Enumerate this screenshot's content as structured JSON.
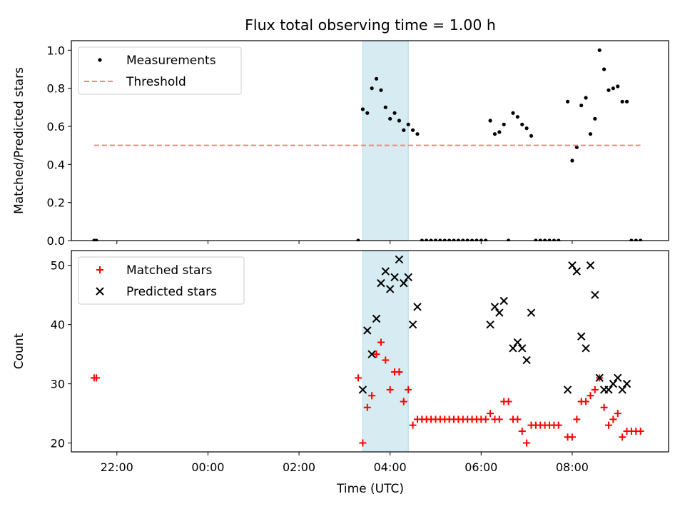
{
  "chart_data": {
    "type": "scatter",
    "title": "Flux total observing time = 1.00 h",
    "xlabel": "Time (UTC)",
    "x_ticks": [
      "22:00",
      "00:00",
      "02:00",
      "04:00",
      "06:00",
      "08:00"
    ],
    "shaded_span": {
      "from": "03:24",
      "to": "04:24",
      "color": "#add8e6"
    },
    "panels": [
      {
        "ylabel": "Matched/Predicted stars",
        "ylim": [
          0,
          1.05
        ],
        "y_ticks": [
          "0.0",
          "0.2",
          "0.4",
          "0.6",
          "0.8",
          "1.0"
        ],
        "legend_position": "upper-left",
        "series": [
          {
            "name": "Measurements",
            "marker": "dot",
            "color": "#000000",
            "points": [
              [
                "21:30",
                0
              ],
              [
                "21:33",
                0
              ],
              [
                "03:18",
                0
              ],
              [
                "03:24",
                0.69
              ],
              [
                "03:30",
                0.67
              ],
              [
                "03:36",
                0.8
              ],
              [
                "03:42",
                0.85
              ],
              [
                "03:48",
                0.79
              ],
              [
                "03:54",
                0.7
              ],
              [
                "04:00",
                0.64
              ],
              [
                "04:06",
                0.67
              ],
              [
                "04:12",
                0.63
              ],
              [
                "04:18",
                0.58
              ],
              [
                "04:24",
                0.61
              ],
              [
                "04:30",
                0.58
              ],
              [
                "04:36",
                0.56
              ],
              [
                "04:42",
                0
              ],
              [
                "04:48",
                0
              ],
              [
                "04:54",
                0
              ],
              [
                "05:00",
                0
              ],
              [
                "05:06",
                0
              ],
              [
                "05:12",
                0
              ],
              [
                "05:18",
                0
              ],
              [
                "05:24",
                0
              ],
              [
                "05:30",
                0
              ],
              [
                "05:36",
                0
              ],
              [
                "05:42",
                0
              ],
              [
                "05:48",
                0
              ],
              [
                "05:54",
                0
              ],
              [
                "06:00",
                0
              ],
              [
                "06:06",
                0
              ],
              [
                "06:12",
                0.63
              ],
              [
                "06:18",
                0.56
              ],
              [
                "06:24",
                0.57
              ],
              [
                "06:30",
                0.61
              ],
              [
                "06:36",
                0
              ],
              [
                "06:42",
                0.67
              ],
              [
                "06:48",
                0.65
              ],
              [
                "06:54",
                0.61
              ],
              [
                "07:00",
                0.59
              ],
              [
                "07:06",
                0.55
              ],
              [
                "07:12",
                0
              ],
              [
                "07:18",
                0
              ],
              [
                "07:24",
                0
              ],
              [
                "07:30",
                0
              ],
              [
                "07:36",
                0
              ],
              [
                "07:42",
                0
              ],
              [
                "07:54",
                0.73
              ],
              [
                "08:00",
                0.42
              ],
              [
                "08:06",
                0.49
              ],
              [
                "08:12",
                0.71
              ],
              [
                "08:18",
                0.75
              ],
              [
                "08:24",
                0.56
              ],
              [
                "08:30",
                0.64
              ],
              [
                "08:36",
                1.0
              ],
              [
                "08:42",
                0.9
              ],
              [
                "08:48",
                0.79
              ],
              [
                "08:54",
                0.8
              ],
              [
                "09:00",
                0.81
              ],
              [
                "09:06",
                0.73
              ],
              [
                "09:12",
                0.73
              ],
              [
                "09:18",
                0
              ],
              [
                "09:24",
                0
              ],
              [
                "09:30",
                0
              ]
            ]
          },
          {
            "name": "Threshold",
            "marker": "dashed-line",
            "color": "#ff7f7f",
            "points": [
              [
                "21:30",
                0.5
              ],
              [
                "09:30",
                0.5
              ]
            ]
          }
        ]
      },
      {
        "ylabel": "Count",
        "ylim": [
          18.5,
          52.5
        ],
        "y_ticks": [
          "20",
          "30",
          "40",
          "50"
        ],
        "legend_position": "upper-left",
        "series": [
          {
            "name": "Matched stars",
            "marker": "plus",
            "color": "#ff0000",
            "points": [
              [
                "21:30",
                31
              ],
              [
                "21:33",
                31
              ],
              [
                "03:18",
                31
              ],
              [
                "03:24",
                20
              ],
              [
                "03:30",
                26
              ],
              [
                "03:36",
                28
              ],
              [
                "03:42",
                35
              ],
              [
                "03:48",
                37
              ],
              [
                "03:54",
                34
              ],
              [
                "04:00",
                29
              ],
              [
                "04:06",
                32
              ],
              [
                "04:12",
                32
              ],
              [
                "04:18",
                27
              ],
              [
                "04:24",
                29
              ],
              [
                "04:30",
                23
              ],
              [
                "04:36",
                24
              ],
              [
                "04:42",
                24
              ],
              [
                "04:48",
                24
              ],
              [
                "04:54",
                24
              ],
              [
                "05:00",
                24
              ],
              [
                "05:06",
                24
              ],
              [
                "05:12",
                24
              ],
              [
                "05:18",
                24
              ],
              [
                "05:24",
                24
              ],
              [
                "05:30",
                24
              ],
              [
                "05:36",
                24
              ],
              [
                "05:42",
                24
              ],
              [
                "05:48",
                24
              ],
              [
                "05:54",
                24
              ],
              [
                "06:00",
                24
              ],
              [
                "06:06",
                24
              ],
              [
                "06:12",
                25
              ],
              [
                "06:18",
                24
              ],
              [
                "06:24",
                24
              ],
              [
                "06:30",
                27
              ],
              [
                "06:36",
                27
              ],
              [
                "06:42",
                24
              ],
              [
                "06:48",
                24
              ],
              [
                "06:54",
                22
              ],
              [
                "07:00",
                20
              ],
              [
                "07:06",
                23
              ],
              [
                "07:12",
                23
              ],
              [
                "07:18",
                23
              ],
              [
                "07:24",
                23
              ],
              [
                "07:30",
                23
              ],
              [
                "07:36",
                23
              ],
              [
                "07:42",
                23
              ],
              [
                "07:54",
                21
              ],
              [
                "08:00",
                21
              ],
              [
                "08:06",
                24
              ],
              [
                "08:12",
                27
              ],
              [
                "08:18",
                27
              ],
              [
                "08:24",
                28
              ],
              [
                "08:30",
                29
              ],
              [
                "08:36",
                31
              ],
              [
                "08:42",
                26
              ],
              [
                "08:48",
                23
              ],
              [
                "08:54",
                24
              ],
              [
                "09:00",
                25
              ],
              [
                "09:06",
                21
              ],
              [
                "09:12",
                22
              ],
              [
                "09:18",
                22
              ],
              [
                "09:24",
                22
              ],
              [
                "09:30",
                22
              ]
            ]
          },
          {
            "name": "Predicted stars",
            "marker": "x",
            "color": "#000000",
            "points": [
              [
                "03:24",
                29
              ],
              [
                "03:30",
                39
              ],
              [
                "03:36",
                35
              ],
              [
                "03:42",
                41
              ],
              [
                "03:48",
                47
              ],
              [
                "03:54",
                49
              ],
              [
                "04:00",
                46
              ],
              [
                "04:06",
                48
              ],
              [
                "04:12",
                51
              ],
              [
                "04:18",
                47
              ],
              [
                "04:24",
                48
              ],
              [
                "04:30",
                40
              ],
              [
                "04:36",
                43
              ],
              [
                "06:12",
                40
              ],
              [
                "06:18",
                43
              ],
              [
                "06:24",
                42
              ],
              [
                "06:30",
                44
              ],
              [
                "06:42",
                36
              ],
              [
                "06:48",
                37
              ],
              [
                "06:54",
                36
              ],
              [
                "07:00",
                34
              ],
              [
                "07:06",
                42
              ],
              [
                "07:54",
                29
              ],
              [
                "08:00",
                50
              ],
              [
                "08:06",
                49
              ],
              [
                "08:12",
                38
              ],
              [
                "08:18",
                36
              ],
              [
                "08:24",
                50
              ],
              [
                "08:30",
                45
              ],
              [
                "08:36",
                31
              ],
              [
                "08:42",
                29
              ],
              [
                "08:48",
                29
              ],
              [
                "08:54",
                30
              ],
              [
                "09:00",
                31
              ],
              [
                "09:06",
                29
              ],
              [
                "09:12",
                30
              ]
            ]
          }
        ]
      }
    ]
  }
}
